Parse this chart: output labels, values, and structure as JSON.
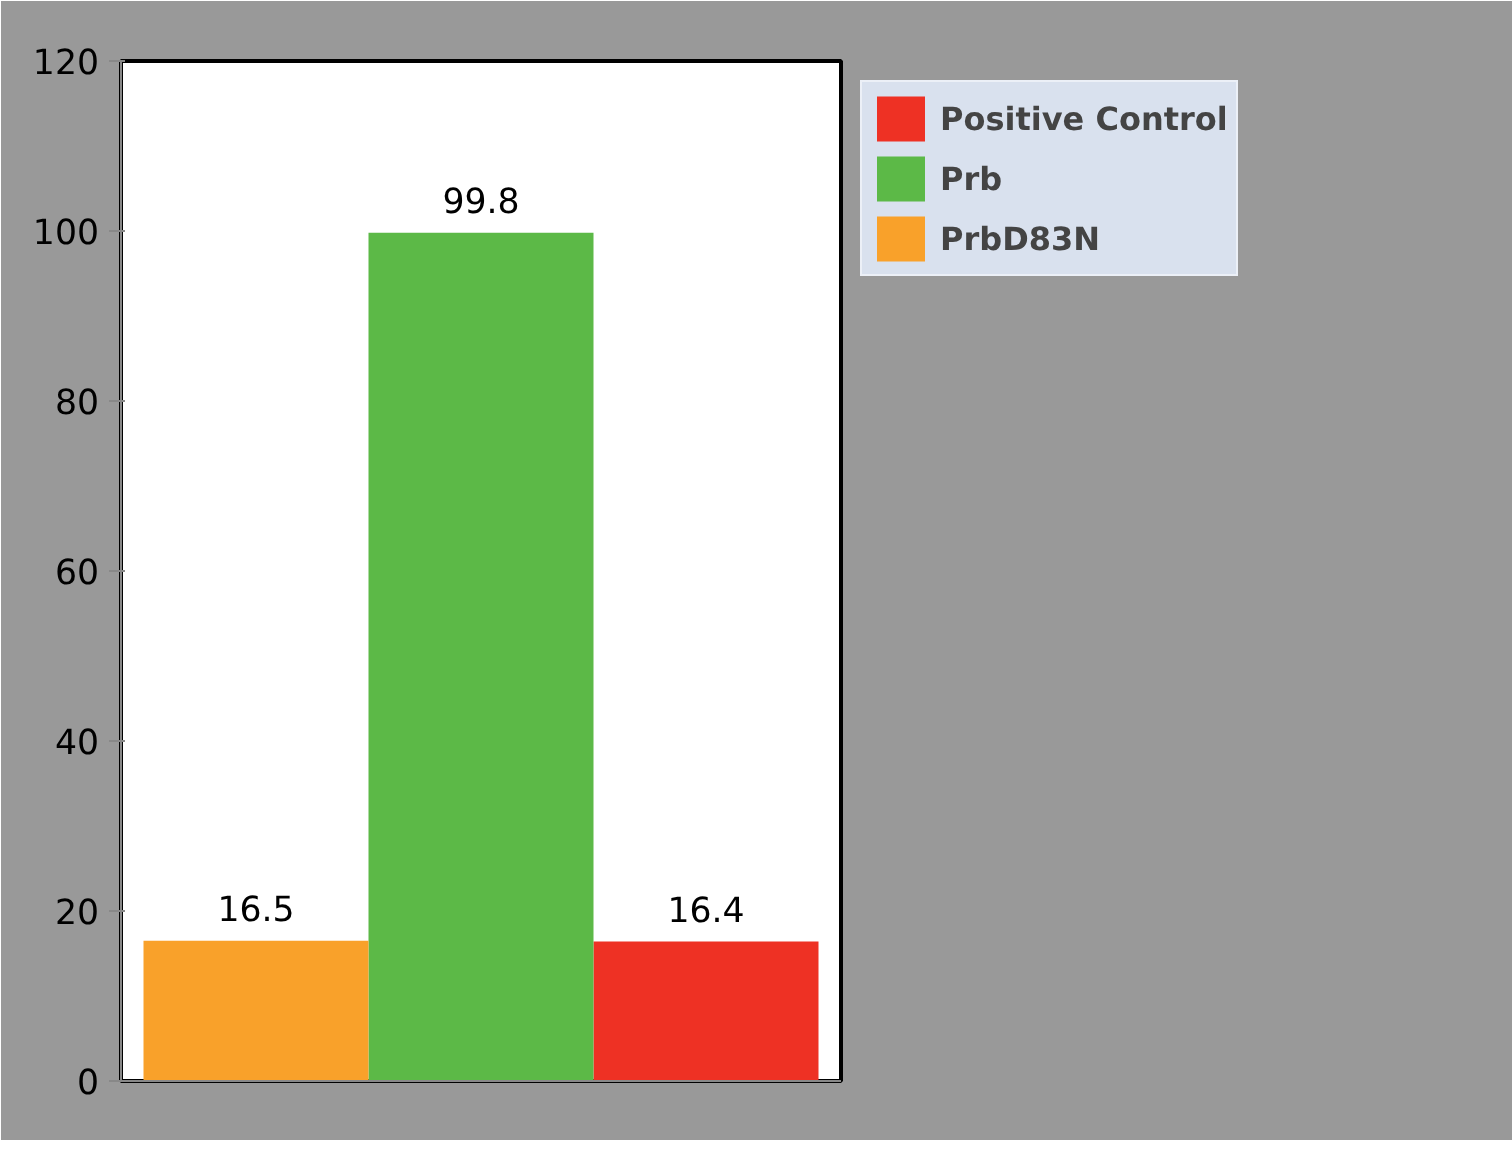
{
  "chart_data": {
    "type": "bar",
    "categories": [
      null,
      null,
      null
    ],
    "series": [
      {
        "name": "Positive Control",
        "color": "#ee3124",
        "values": [
          null,
          null,
          16.4
        ]
      },
      {
        "name": "Prb",
        "color": "#5cb947",
        "values": [
          null,
          99.8,
          null
        ]
      },
      {
        "name": "PrbD83N",
        "color": "#f9a12a",
        "values": [
          16.5,
          null,
          null
        ]
      }
    ],
    "ylim": [
      0,
      120
    ],
    "yticks": [
      0,
      20,
      40,
      60,
      80,
      100,
      120
    ],
    "grid": false,
    "legend": "right",
    "data_labels": true
  }
}
